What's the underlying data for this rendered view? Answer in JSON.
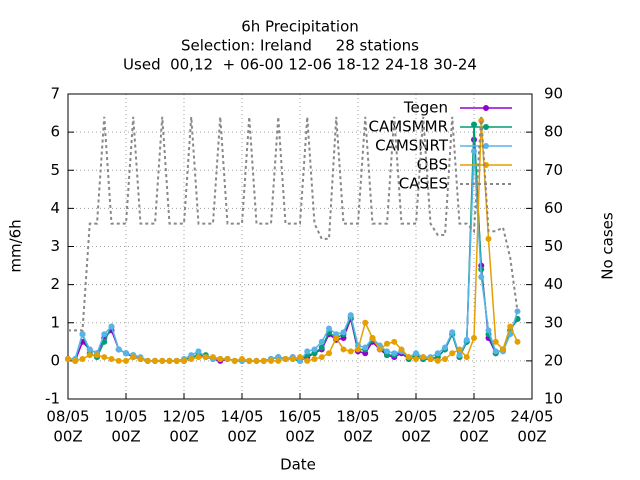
{
  "chart_data": {
    "type": "line",
    "title": "6h Precipitation",
    "subtitle": [
      "Selection: Ireland     28 stations",
      "Used  00,12  + 06-00 12-06 18-12 24-18 30-24"
    ],
    "xlabel": "Date",
    "ylabel": "mm/6h",
    "y2label": "No cases",
    "x": [
      "08/05 00Z",
      "08/05 06Z",
      "08/05 12Z",
      "08/05 18Z",
      "09/05 00Z",
      "09/05 06Z",
      "09/05 12Z",
      "09/05 18Z",
      "10/05 00Z",
      "10/05 06Z",
      "10/05 12Z",
      "10/05 18Z",
      "11/05 00Z",
      "11/05 06Z",
      "11/05 12Z",
      "11/05 18Z",
      "12/05 00Z",
      "12/05 06Z",
      "12/05 12Z",
      "12/05 18Z",
      "13/05 00Z",
      "13/05 06Z",
      "13/05 12Z",
      "13/05 18Z",
      "14/05 00Z",
      "14/05 06Z",
      "14/05 12Z",
      "14/05 18Z",
      "15/05 00Z",
      "15/05 06Z",
      "15/05 12Z",
      "15/05 18Z",
      "16/05 00Z",
      "16/05 06Z",
      "16/05 12Z",
      "16/05 18Z",
      "17/05 00Z",
      "17/05 06Z",
      "17/05 12Z",
      "17/05 18Z",
      "18/05 00Z",
      "18/05 06Z",
      "18/05 12Z",
      "18/05 18Z",
      "19/05 00Z",
      "19/05 06Z",
      "19/05 12Z",
      "19/05 18Z",
      "20/05 00Z",
      "20/05 06Z",
      "20/05 12Z",
      "20/05 18Z",
      "21/05 00Z",
      "21/05 06Z",
      "21/05 12Z",
      "21/05 18Z",
      "22/05 00Z",
      "22/05 06Z",
      "22/05 12Z",
      "22/05 18Z",
      "23/05 00Z",
      "23/05 06Z",
      "23/05 12Z"
    ],
    "series": [
      {
        "name": "Tegen",
        "color": "#9400d3",
        "values": [
          0.05,
          0,
          0.5,
          0.3,
          0.2,
          0.6,
          0.8,
          0.3,
          0.2,
          0.1,
          0.05,
          0,
          0,
          0,
          0,
          0,
          0,
          0.1,
          0.15,
          0.1,
          0.05,
          0,
          0.05,
          0,
          0,
          0,
          0,
          0,
          0.05,
          0.1,
          0.05,
          0.1,
          0,
          0.1,
          0.2,
          0.3,
          0.7,
          0.55,
          0.6,
          1.1,
          0.25,
          0.2,
          0.5,
          0.3,
          0.15,
          0.1,
          0.2,
          0.05,
          0.1,
          0.05,
          0.05,
          0.1,
          0.3,
          0.7,
          0.1,
          0.5,
          5.8,
          2.5,
          0.6,
          0.2,
          0.3,
          0.8,
          1.1
        ]
      },
      {
        "name": "CAMSMMR",
        "color": "#009e73",
        "values": [
          0.05,
          0.05,
          0.7,
          0.2,
          0.1,
          0.5,
          0.9,
          0.3,
          0.2,
          0.15,
          0.05,
          0,
          0,
          0,
          0,
          0,
          0,
          0.1,
          0.15,
          0.15,
          0.05,
          0.05,
          0.05,
          0,
          0,
          0,
          0,
          0,
          0.05,
          0.1,
          0.05,
          0.05,
          0,
          0.15,
          0.2,
          0.35,
          0.75,
          0.6,
          0.7,
          1.15,
          0.3,
          0.3,
          0.55,
          0.4,
          0.15,
          0.15,
          0.25,
          0.05,
          0.15,
          0.05,
          0.05,
          0.1,
          0.3,
          0.7,
          0.1,
          0.5,
          6.2,
          2.4,
          0.7,
          0.2,
          0.3,
          0.8,
          1.1
        ]
      },
      {
        "name": "CAMSNRT",
        "color": "#56b4e9",
        "values": [
          0.05,
          0.05,
          0.7,
          0.3,
          0.2,
          0.7,
          0.9,
          0.3,
          0.2,
          0.15,
          0.1,
          0,
          0,
          0,
          0,
          0,
          0.05,
          0.15,
          0.25,
          0.1,
          0.05,
          0.05,
          0.05,
          0,
          0,
          0,
          0,
          0,
          0.05,
          0.1,
          0.05,
          0.1,
          0,
          0.25,
          0.3,
          0.5,
          0.85,
          0.7,
          0.75,
          1.2,
          0.4,
          0.35,
          0.6,
          0.4,
          0.25,
          0.2,
          0.25,
          0.1,
          0.2,
          0.1,
          0.1,
          0.2,
          0.35,
          0.75,
          0.15,
          0.55,
          5.5,
          2.2,
          0.8,
          0.25,
          0.25,
          0.7,
          1.3
        ]
      },
      {
        "name": "OBS",
        "color": "#e69f00",
        "values": [
          0.05,
          0,
          0.05,
          0.15,
          0.15,
          0.1,
          0.05,
          0,
          0,
          0.1,
          0.05,
          0,
          0,
          0,
          0,
          0,
          0,
          0.05,
          0.1,
          0.1,
          0.1,
          0.05,
          0.05,
          0,
          0.05,
          0,
          0,
          0,
          0,
          0,
          0.05,
          0.05,
          0.1,
          0,
          0.05,
          0.1,
          0.2,
          0.6,
          0.3,
          0.25,
          0.3,
          1.0,
          0.6,
          0.3,
          0.45,
          0.5,
          0.3,
          0.1,
          0.05,
          0.1,
          0.05,
          0,
          0.05,
          0.2,
          0.3,
          0.1,
          0.6,
          6.3,
          3.2,
          0.5,
          0.3,
          0.9,
          0.5
        ]
      },
      {
        "name": "CASES",
        "color": "#888888",
        "axis": "y2",
        "dashed": true,
        "values": [
          28,
          28,
          28,
          56,
          56,
          84,
          56,
          56,
          56,
          84,
          56,
          56,
          56,
          84,
          56,
          56,
          56,
          84,
          56,
          56,
          56,
          84,
          56,
          56,
          56,
          84,
          56,
          56,
          56,
          84,
          56,
          56,
          56,
          84,
          56,
          52,
          52,
          84,
          56,
          56,
          56,
          84,
          56,
          56,
          56,
          84,
          56,
          56,
          56,
          84,
          56,
          53,
          53,
          84,
          56,
          56,
          54,
          84,
          54,
          54,
          55,
          47,
          33
        ]
      }
    ],
    "xlim": [
      "08/05 00Z",
      "24/05 00Z"
    ],
    "xticks": [
      {
        "value": "08/05 00Z",
        "label": [
          "08/05",
          "00Z"
        ]
      },
      {
        "value": "10/05 00Z",
        "label": [
          "10/05",
          "00Z"
        ]
      },
      {
        "value": "12/05 00Z",
        "label": [
          "12/05",
          "00Z"
        ]
      },
      {
        "value": "14/05 00Z",
        "label": [
          "14/05",
          "00Z"
        ]
      },
      {
        "value": "16/05 00Z",
        "label": [
          "16/05",
          "00Z"
        ]
      },
      {
        "value": "18/05 00Z",
        "label": [
          "18/05",
          "00Z"
        ]
      },
      {
        "value": "20/05 00Z",
        "label": [
          "20/05",
          "00Z"
        ]
      },
      {
        "value": "22/05 00Z",
        "label": [
          "22/05",
          "00Z"
        ]
      },
      {
        "value": "24/05 00Z",
        "label": [
          "24/05",
          "00Z"
        ]
      }
    ],
    "ylim": [
      -1,
      7
    ],
    "yticks": [
      -1,
      0,
      1,
      2,
      3,
      4,
      5,
      6,
      7
    ],
    "y2lim": [
      10,
      90
    ],
    "y2ticks": [
      10,
      20,
      30,
      40,
      50,
      60,
      70,
      80,
      90
    ],
    "grid": true,
    "legend": "top-right"
  }
}
